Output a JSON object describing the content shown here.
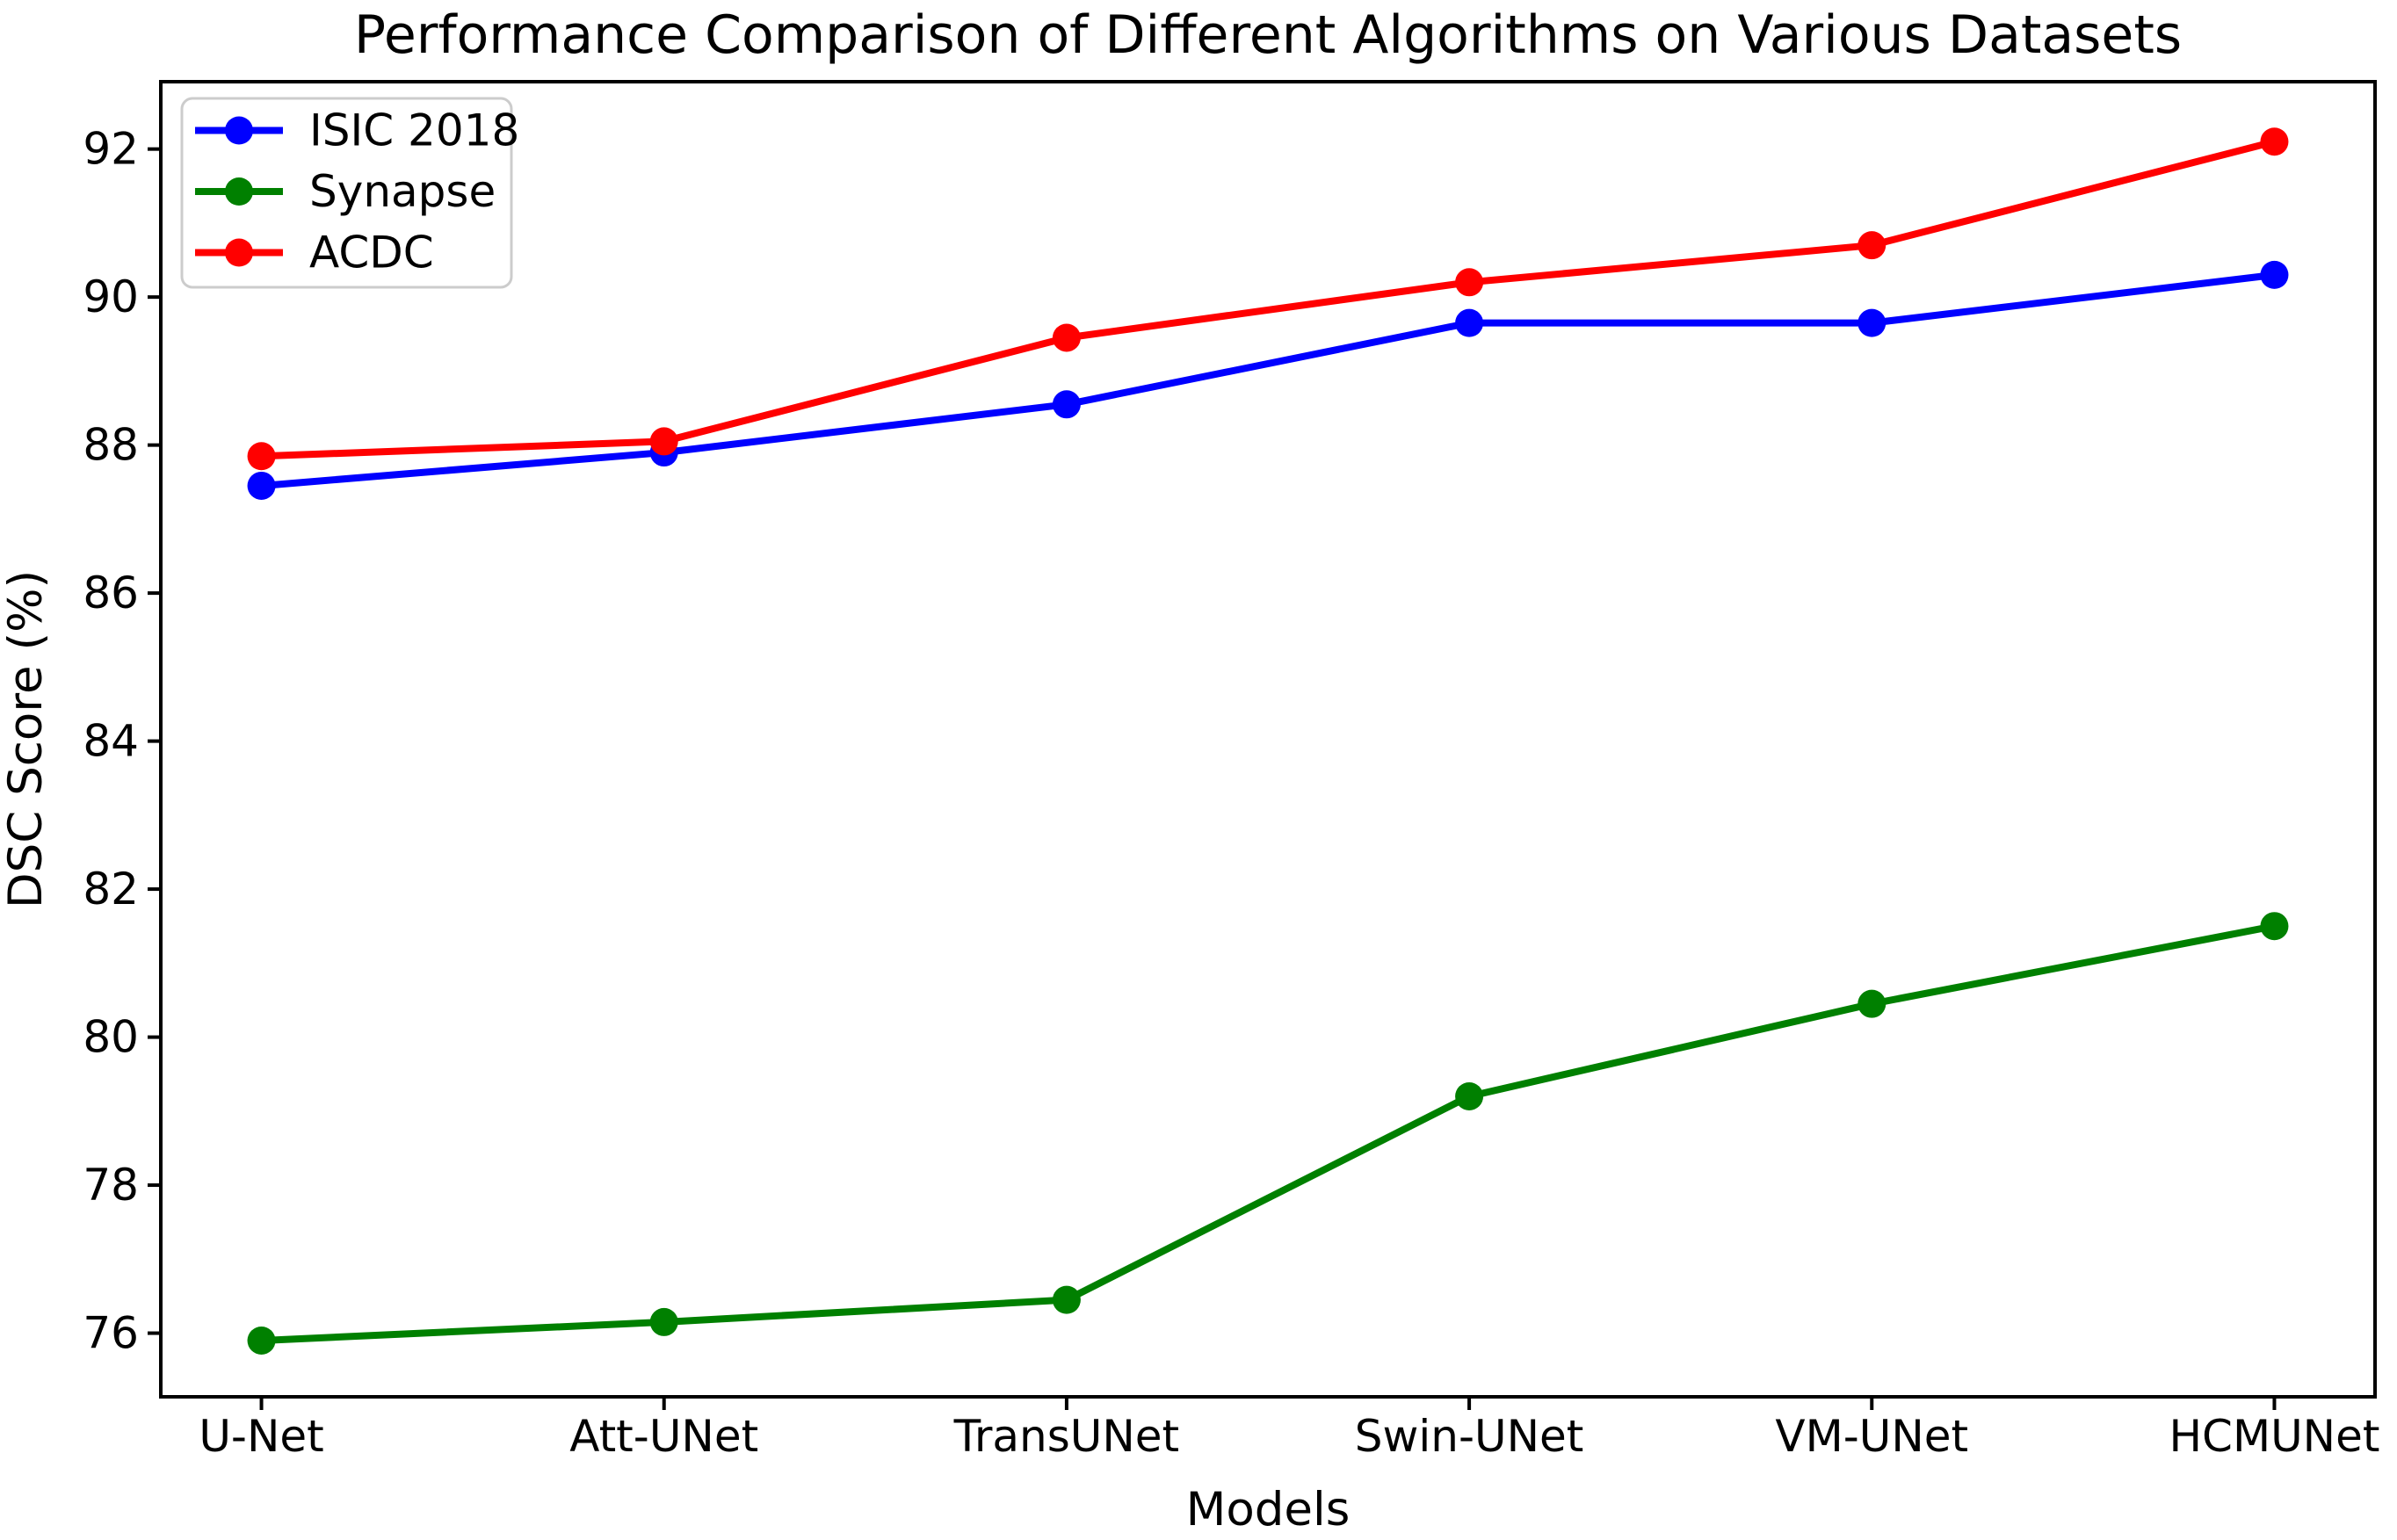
{
  "figure": {
    "background": "#ffffff",
    "text_color": "#000000",
    "axis_color": "#000000",
    "legend_border_color": "#cccccc",
    "legend_background": "#ffffff"
  },
  "chart_data": {
    "type": "line",
    "title": "Performance Comparison of Different Algorithms on Various Datasets",
    "xlabel": "Models",
    "ylabel": "DSC Score (%)",
    "categories": [
      "U-Net",
      "Att-UNet",
      "TransUNet",
      "Swin-UNet",
      "VM-UNet",
      "HCMUNet"
    ],
    "series": [
      {
        "name": "ISIC 2018",
        "color": "#0000ff",
        "values": [
          87.45,
          87.9,
          88.55,
          89.65,
          89.65,
          90.3
        ]
      },
      {
        "name": "Synapse",
        "color": "#008000",
        "values": [
          75.9,
          76.15,
          76.45,
          79.2,
          80.45,
          81.5
        ]
      },
      {
        "name": "ACDC",
        "color": "#ff0000",
        "values": [
          87.85,
          88.05,
          89.45,
          90.2,
          90.7,
          92.1
        ]
      }
    ],
    "y_ticks": [
      76,
      78,
      80,
      82,
      84,
      86,
      88,
      90,
      92
    ],
    "ylim": [
      75.14,
      92.91
    ],
    "xlim": [
      -0.25,
      5.25
    ],
    "grid": false,
    "legend_position": "upper left",
    "marker": "circle",
    "line_width": 8,
    "marker_radius": 16
  }
}
